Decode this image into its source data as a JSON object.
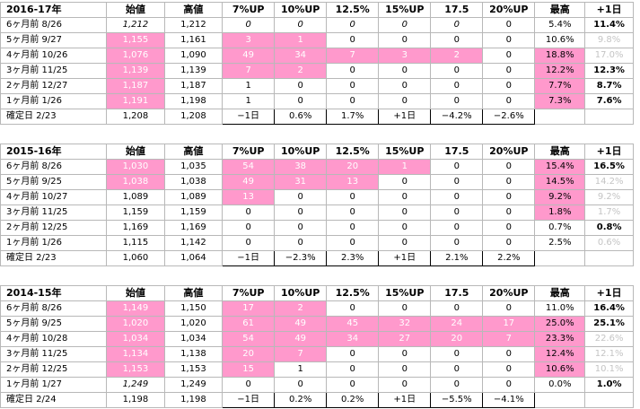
{
  "columns": [
    "始値",
    "高値",
    "7%UP",
    "10%UP",
    "12.5%",
    "15%UP",
    "17.5",
    "20%UP",
    "最高",
    "+1日"
  ],
  "tables": [
    {
      "title": "2016-17年",
      "rows": [
        {
          "label": "6ヶ月前  8/26",
          "cells": [
            "1,212",
            "1,212",
            "0",
            "0",
            "0",
            "0",
            "0",
            "0",
            "5.4%",
            "11.4%"
          ]
        },
        {
          "label": "5ヶ月前  9/27",
          "cells": [
            "1,155",
            "1,161",
            "3",
            "1",
            "0",
            "0",
            "0",
            "0",
            "10.6%",
            "9.8%"
          ]
        },
        {
          "label": "4ヶ月前  10/26",
          "cells": [
            "1,076",
            "1,090",
            "49",
            "34",
            "7",
            "3",
            "2",
            "0",
            "18.8%",
            "17.0%"
          ]
        },
        {
          "label": "3ヶ月前  11/25",
          "cells": [
            "1,139",
            "1,139",
            "7",
            "2",
            "0",
            "0",
            "0",
            "0",
            "12.2%",
            "12.3%"
          ]
        },
        {
          "label": "2ヶ月前  12/27",
          "cells": [
            "1,187",
            "1,187",
            "1",
            "0",
            "0",
            "0",
            "0",
            "0",
            "7.7%",
            "8.7%"
          ]
        },
        {
          "label": "1ヶ月前  1/26",
          "cells": [
            "1,191",
            "1,198",
            "1",
            "0",
            "0",
            "0",
            "0",
            "0",
            "7.3%",
            "7.6%"
          ]
        },
        {
          "label": "確定日  2/23",
          "cells": [
            "1,208",
            "1,208",
            "−1日",
            "0.6%",
            "1.7%",
            "+1日",
            "−4.2%",
            "−2.6%",
            "",
            ""
          ]
        }
      ]
    },
    {
      "title": "2015-16年",
      "rows": [
        {
          "label": "6ヶ月前  8/26",
          "cells": [
            "1,030",
            "1,035",
            "54",
            "38",
            "20",
            "1",
            "0",
            "0",
            "15.4%",
            "16.5%"
          ]
        },
        {
          "label": "5ヶ月前  9/25",
          "cells": [
            "1,038",
            "1,038",
            "49",
            "31",
            "13",
            "0",
            "0",
            "0",
            "14.5%",
            "14.2%"
          ]
        },
        {
          "label": "4ヶ月前  10/27",
          "cells": [
            "1,089",
            "1,089",
            "13",
            "0",
            "0",
            "0",
            "0",
            "0",
            "9.2%",
            "9.2%"
          ]
        },
        {
          "label": "3ヶ月前  11/25",
          "cells": [
            "1,159",
            "1,159",
            "0",
            "0",
            "0",
            "0",
            "0",
            "0",
            "1.8%",
            "1.7%"
          ]
        },
        {
          "label": "2ヶ月前  12/25",
          "cells": [
            "1,169",
            "1,169",
            "0",
            "0",
            "0",
            "0",
            "0",
            "0",
            "0.7%",
            "0.8%"
          ]
        },
        {
          "label": "1ヶ月前  1/26",
          "cells": [
            "1,115",
            "1,142",
            "0",
            "0",
            "0",
            "0",
            "0",
            "0",
            "2.5%",
            "0.6%"
          ]
        },
        {
          "label": "確定日  2/23",
          "cells": [
            "1,060",
            "1,064",
            "−1日",
            "−2.3%",
            "2.3%",
            "+1日",
            "2.1%",
            "2.2%",
            "",
            ""
          ]
        }
      ]
    },
    {
      "title": "2014-15年",
      "rows": [
        {
          "label": "6ヶ月前  8/26",
          "cells": [
            "1,149",
            "1,150",
            "17",
            "2",
            "0",
            "0",
            "0",
            "0",
            "11.0%",
            "16.4%"
          ]
        },
        {
          "label": "5ヶ月前  9/25",
          "cells": [
            "1,020",
            "1,020",
            "61",
            "49",
            "45",
            "32",
            "24",
            "17",
            "25.0%",
            "25.1%"
          ]
        },
        {
          "label": "4ヶ月前  10/28",
          "cells": [
            "1,034",
            "1,034",
            "54",
            "49",
            "34",
            "27",
            "20",
            "7",
            "23.3%",
            "22.6%"
          ]
        },
        {
          "label": "3ヶ月前  11/25",
          "cells": [
            "1,134",
            "1,138",
            "20",
            "7",
            "0",
            "0",
            "0",
            "0",
            "12.4%",
            "12.1%"
          ]
        },
        {
          "label": "2ヶ月前  12/25",
          "cells": [
            "1,153",
            "1,153",
            "15",
            "1",
            "0",
            "0",
            "0",
            "0",
            "10.6%",
            "10.1%"
          ]
        },
        {
          "label": "1ヶ月前  1/27",
          "cells": [
            "1,249",
            "1,249",
            "0",
            "0",
            "0",
            "0",
            "0",
            "0",
            "0.0%",
            "1.0%"
          ]
        },
        {
          "label": "確定日  2/24",
          "cells": [
            "1,198",
            "1,198",
            "−1日",
            "0.2%",
            "0.2%",
            "+1日",
            "−5.5%",
            "−4.1%",
            "",
            ""
          ]
        }
      ]
    }
  ],
  "colors": {
    "highlight": "#ff99cc",
    "gray_text": "#c4c4c4",
    "grid": "#b8b8b8"
  }
}
